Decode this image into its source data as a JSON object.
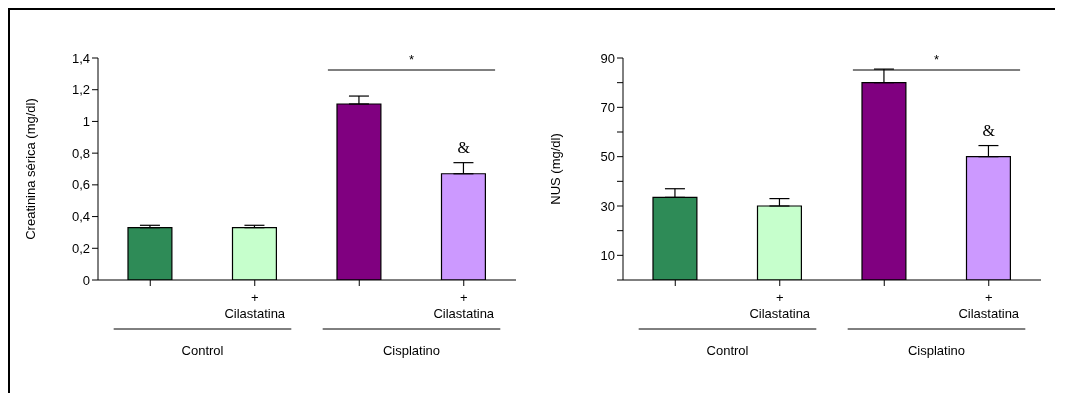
{
  "chart_data": [
    {
      "type": "bar",
      "categories": [
        null,
        "+\nCilastatina",
        null,
        "+\nCilastatina"
      ],
      "values": [
        0.33,
        0.33,
        1.11,
        0.67
      ],
      "errors": [
        0.015,
        0.015,
        0.05,
        0.07
      ],
      "colors": [
        "#2e8b57",
        "#c6ffcc",
        "#800080",
        "#cc99ff"
      ],
      "ylabel": "Creatinina sérica (mg/dl)",
      "ylim": [
        0,
        1.4
      ],
      "yticks": [
        0,
        {
          "value": 0.2,
          "label": "0,2"
        },
        {
          "value": 0.4,
          "label": "0,4"
        },
        {
          "value": 0.6,
          "label": "0,6"
        },
        {
          "value": 0.8,
          "label": "0,8"
        },
        1,
        {
          "value": 1.2,
          "label": "1,2"
        },
        {
          "value": 1.4,
          "label": "1,4"
        }
      ],
      "annotations": [
        "Control",
        "Cisplatino",
        "*",
        "&"
      ]
    },
    {
      "type": "bar",
      "categories": [
        null,
        "+\nCilastatina",
        null,
        "+\nCilastatina"
      ],
      "values": [
        33.5,
        30,
        80,
        50
      ],
      "errors": [
        3.5,
        3,
        5.5,
        4.5
      ],
      "colors": [
        "#2e8b57",
        "#c6ffcc",
        "#800080",
        "#cc99ff"
      ],
      "ylabel": "NUS (mg/dl)",
      "ylim": [
        0,
        90
      ],
      "yticks": [
        {
          "value": 0,
          "label": null
        },
        10,
        {
          "value": 20,
          "label": null
        },
        30,
        {
          "value": 40,
          "label": null
        },
        50,
        {
          "value": 60,
          "label": null
        },
        70,
        {
          "value": 80,
          "label": null
        },
        90
      ],
      "annotations": [
        "Control",
        "Cisplatino",
        "*",
        "&"
      ]
    }
  ]
}
